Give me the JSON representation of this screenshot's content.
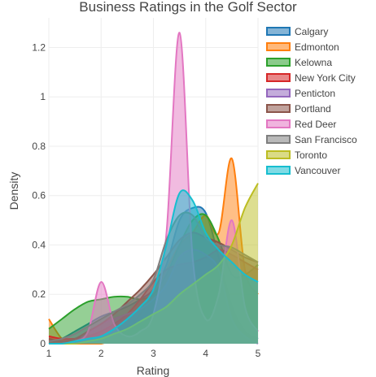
{
  "chart_data": {
    "type": "area",
    "title": "Business Ratings in the Golf Sector",
    "xlabel": "Rating",
    "ylabel": "Density",
    "xlim": [
      1,
      5
    ],
    "ylim": [
      0,
      1.32
    ],
    "x_ticks": [
      "1",
      "2",
      "3",
      "4",
      "5"
    ],
    "y_ticks": [
      "0",
      "0.2",
      "0.4",
      "0.6",
      "0.8",
      "1",
      "1.2"
    ],
    "grid": true,
    "legend_position": "top-right",
    "x": [
      1.0,
      1.25,
      1.5,
      1.75,
      2.0,
      2.25,
      2.5,
      2.75,
      3.0,
      3.25,
      3.5,
      3.75,
      4.0,
      4.25,
      4.5,
      4.75,
      5.0
    ],
    "series": [
      {
        "name": "Calgary",
        "color": "#1f77b4",
        "values": [
          0.0,
          0.02,
          0.05,
          0.08,
          0.11,
          0.13,
          0.15,
          0.18,
          0.22,
          0.32,
          0.5,
          0.55,
          0.53,
          0.35,
          0.15,
          0.05,
          0.02
        ]
      },
      {
        "name": "Edmonton",
        "color": "#ff7f0e",
        "values": [
          0.1,
          0.02,
          0.0,
          0.0,
          0.0,
          0.02,
          0.06,
          0.12,
          0.2,
          0.3,
          0.4,
          0.45,
          0.52,
          0.45,
          0.75,
          0.3,
          0.2
        ]
      },
      {
        "name": "Kelowna",
        "color": "#2ca02c",
        "values": [
          0.06,
          0.1,
          0.14,
          0.17,
          0.18,
          0.19,
          0.19,
          0.18,
          0.2,
          0.28,
          0.4,
          0.5,
          0.52,
          0.42,
          0.28,
          0.28,
          0.32
        ]
      },
      {
        "name": "New York City",
        "color": "#d62728",
        "values": [
          0.03,
          0.02,
          0.02,
          0.03,
          0.05,
          0.08,
          0.12,
          0.18,
          0.25,
          0.3,
          0.32,
          0.33,
          0.35,
          0.38,
          0.36,
          0.33,
          0.3
        ]
      },
      {
        "name": "Penticton",
        "color": "#9467bd",
        "values": [
          0.0,
          0.0,
          0.01,
          0.04,
          0.08,
          0.1,
          0.12,
          0.14,
          0.18,
          0.24,
          0.35,
          0.38,
          0.36,
          0.3,
          0.1,
          0.03,
          0.0
        ]
      },
      {
        "name": "Portland",
        "color": "#8c564b",
        "values": [
          0.02,
          0.01,
          0.02,
          0.05,
          0.08,
          0.12,
          0.17,
          0.22,
          0.28,
          0.35,
          0.42,
          0.45,
          0.43,
          0.41,
          0.38,
          0.35,
          0.33
        ]
      },
      {
        "name": "Red Deer",
        "color": "#e377c2",
        "values": [
          0.0,
          0.0,
          0.01,
          0.05,
          0.25,
          0.08,
          0.03,
          0.05,
          0.12,
          0.45,
          1.26,
          0.35,
          0.1,
          0.2,
          0.5,
          0.15,
          0.05
        ]
      },
      {
        "name": "San Francisco",
        "color": "#7f7f7f",
        "values": [
          0.01,
          0.02,
          0.04,
          0.07,
          0.1,
          0.13,
          0.16,
          0.2,
          0.26,
          0.42,
          0.52,
          0.52,
          0.43,
          0.4,
          0.39,
          0.36,
          0.33
        ]
      },
      {
        "name": "Toronto",
        "color": "#bcbd22",
        "values": [
          0.0,
          0.0,
          0.0,
          0.01,
          0.02,
          0.04,
          0.06,
          0.09,
          0.12,
          0.15,
          0.2,
          0.24,
          0.28,
          0.32,
          0.4,
          0.55,
          0.65
        ]
      },
      {
        "name": "Vancouver",
        "color": "#17becf",
        "values": [
          0.0,
          0.0,
          0.01,
          0.02,
          0.03,
          0.06,
          0.1,
          0.15,
          0.22,
          0.4,
          0.61,
          0.58,
          0.45,
          0.38,
          0.33,
          0.28,
          0.25
        ]
      }
    ]
  }
}
